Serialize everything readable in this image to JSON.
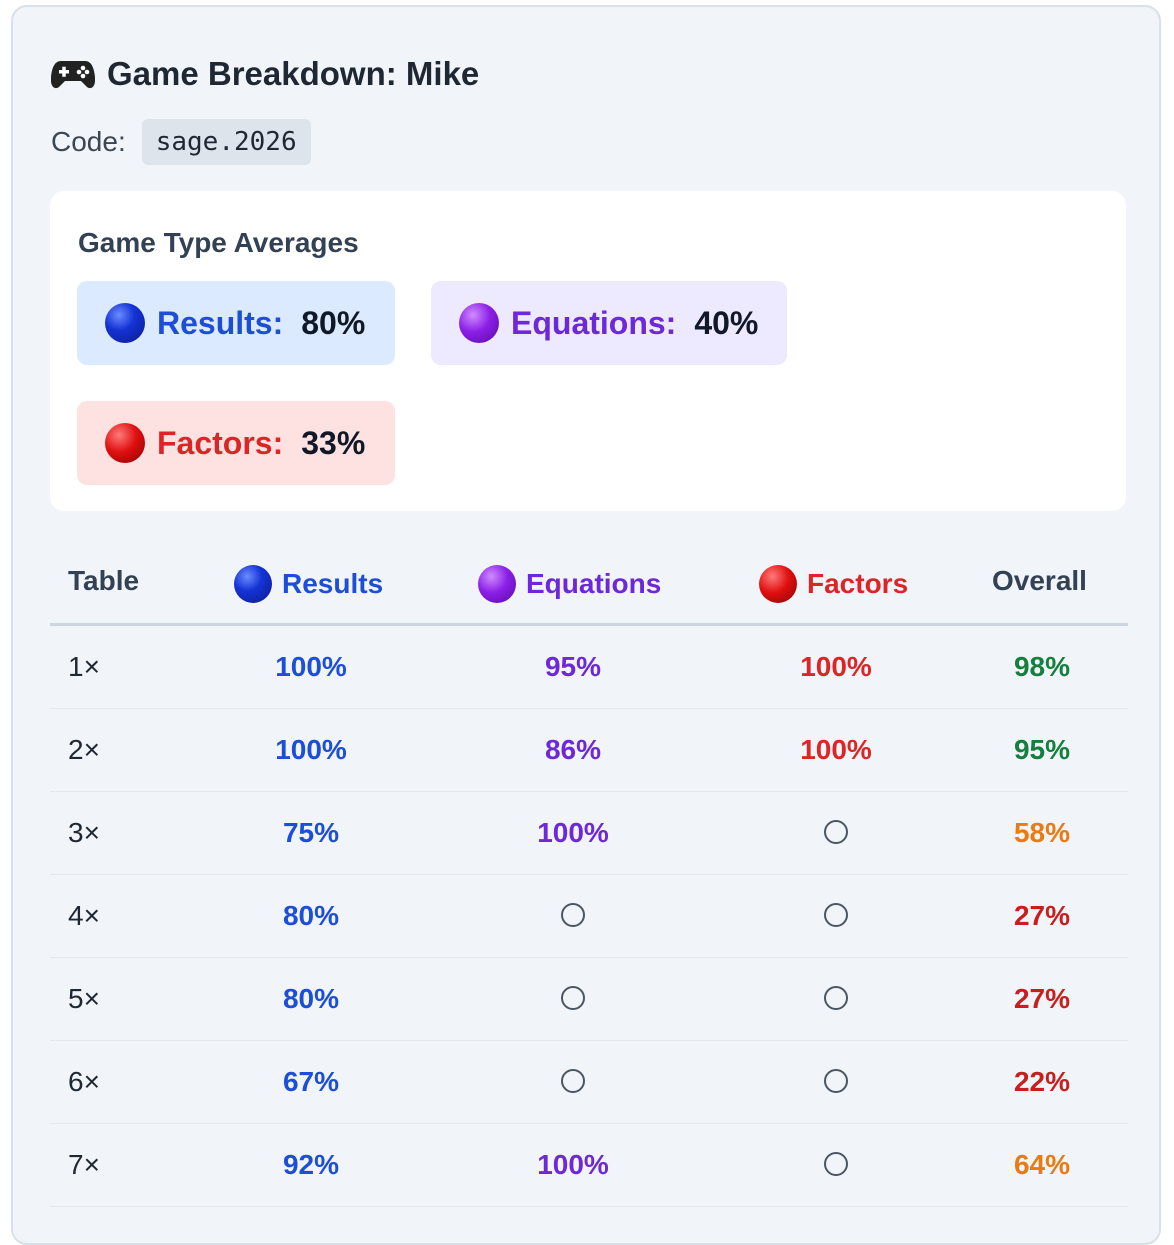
{
  "header": {
    "title": "Game Breakdown: Mike",
    "code_label": "Code:",
    "code_value": "sage.2026"
  },
  "averages": {
    "title": "Game Type Averages",
    "items": [
      {
        "label": "Results:",
        "value": "80%",
        "color": "#1d4ed8"
      },
      {
        "label": "Equations:",
        "value": "40%",
        "color": "#6d28d9"
      },
      {
        "label": "Factors:",
        "value": "33%",
        "color": "#dc2626"
      }
    ]
  },
  "table": {
    "headers": {
      "table": "Table",
      "results": "Results",
      "equations": "Equations",
      "factors": "Factors",
      "overall": "Overall"
    },
    "rows": [
      {
        "table": "1×",
        "results": "100%",
        "equations": "95%",
        "factors": "100%",
        "overall": "98%",
        "overall_color": "#15803d"
      },
      {
        "table": "2×",
        "results": "100%",
        "equations": "86%",
        "factors": "100%",
        "overall": "95%",
        "overall_color": "#15803d"
      },
      {
        "table": "3×",
        "results": "75%",
        "equations": "100%",
        "factors": null,
        "overall": "58%",
        "overall_color": "#ea7a12"
      },
      {
        "table": "4×",
        "results": "80%",
        "equations": null,
        "factors": null,
        "overall": "27%",
        "overall_color": "#c81e1e"
      },
      {
        "table": "5×",
        "results": "80%",
        "equations": null,
        "factors": null,
        "overall": "27%",
        "overall_color": "#c81e1e"
      },
      {
        "table": "6×",
        "results": "67%",
        "equations": null,
        "factors": null,
        "overall": "22%",
        "overall_color": "#c81e1e"
      },
      {
        "table": "7×",
        "results": "92%",
        "equations": "100%",
        "factors": null,
        "overall": "64%",
        "overall_color": "#ea7a12"
      }
    ]
  },
  "icons": {
    "title_icon": "gamepad-icon",
    "results_icon": "blue-circle-icon",
    "equations_icon": "purple-circle-icon",
    "factors_icon": "red-circle-icon",
    "empty_icon": "empty-circle-icon"
  }
}
